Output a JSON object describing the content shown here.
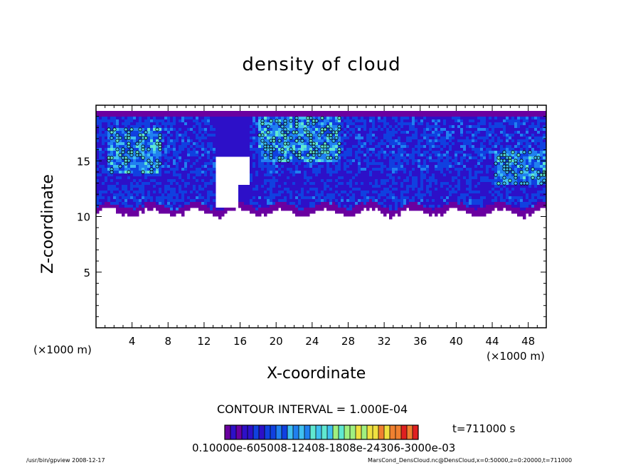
{
  "chart_data": {
    "type": "heatmap",
    "title": "density of cloud",
    "xlabel": "X-coordinate",
    "ylabel": "Z-coordinate",
    "x_unit": "(×1000 m)",
    "xlim": [
      0,
      50
    ],
    "ylim": [
      0,
      20
    ],
    "x_ticks": [
      "4",
      "8",
      "12",
      "16",
      "20",
      "24",
      "28",
      "32",
      "36",
      "40",
      "44",
      "48"
    ],
    "y_ticks": [
      "5",
      "10",
      "15"
    ],
    "contour_interval": "CONTOUR INTERVAL = 1.000E-04",
    "time": "t=711000 s",
    "colorbar_labels": "0.10000e-605008-12408-1808e-24306-3000e-03",
    "cloud_layer": {
      "z_bottom": 10.5,
      "z_top": 19.6,
      "gap_x": [
        13.2,
        16.8
      ],
      "high_density_regions": [
        {
          "x": [
            1,
            7
          ],
          "z": [
            14,
            18
          ]
        },
        {
          "x": [
            18,
            27
          ],
          "z": [
            15,
            19
          ]
        },
        {
          "x": [
            44,
            50
          ],
          "z": [
            13,
            16
          ]
        }
      ]
    },
    "colormap": [
      "#6a00a0",
      "#2d10c8",
      "#1040e0",
      "#2080f0",
      "#40c0f0",
      "#60e8d0",
      "#a0f080",
      "#f0e040",
      "#f08030",
      "#e02020"
    ]
  },
  "footer": {
    "left": "/usr/bin/gpview  2008-12-17",
    "right": "MarsCond_DensCloud.nc@DensCloud,x=0:50000,z=0:20000,t=711000"
  }
}
